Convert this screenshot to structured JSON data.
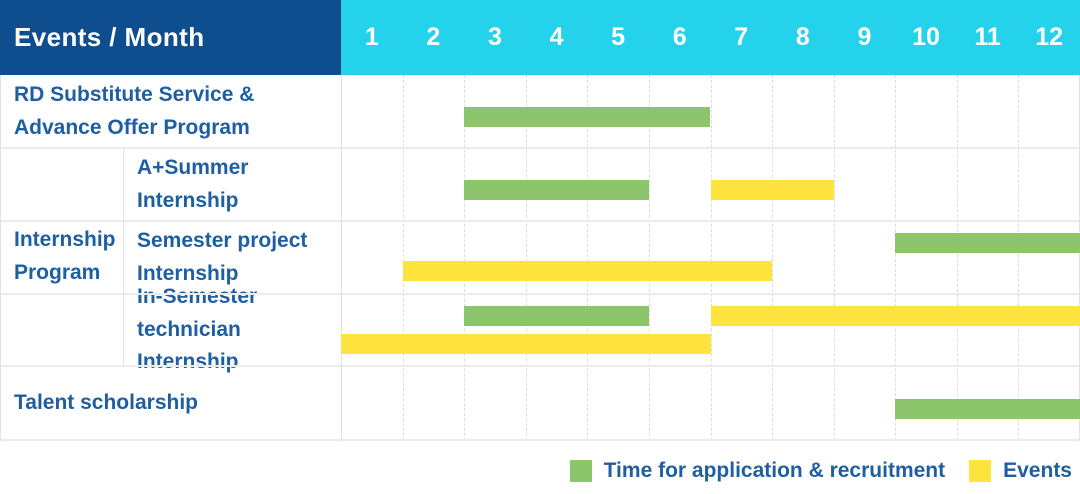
{
  "header": {
    "title": "Events / Month",
    "months": [
      "1",
      "2",
      "3",
      "4",
      "5",
      "6",
      "7",
      "8",
      "9",
      "10",
      "11",
      "12"
    ]
  },
  "labels": {
    "rd": "RD Substitute Service &\nAdvance Offer Program",
    "internship_group": "Internship\nProgram",
    "a_summer": "A+Summer\nInternship",
    "semester_project": "Semester project\nInternship",
    "in_semester": "In-Semester\ntechnician Internship",
    "talent": "Talent scholarship"
  },
  "legend": [
    {
      "label": "Time for application & recruitment",
      "kind": "application"
    },
    {
      "label": "Events",
      "kind": "event"
    }
  ],
  "colors": {
    "header_navy": "#0f4e8e",
    "header_cyan": "#24d2ec",
    "label_blue": "#1e5fa4",
    "application_green": "#8cc56b",
    "event_yellow": "#ffe33f"
  },
  "chart_data": {
    "type": "bar",
    "variant": "gantt-schedule",
    "title": "Events / Month",
    "x_axis": {
      "label": "Month",
      "categories": [
        1,
        2,
        3,
        4,
        5,
        6,
        7,
        8,
        9,
        10,
        11,
        12
      ]
    },
    "legend_position": "bottom-right",
    "grid": true,
    "rows": [
      {
        "group": "RD Substitute Service & Advance Offer Program",
        "label": "RD Substitute Service & Advance Offer Program",
        "bars": [
          {
            "kind": "application",
            "start": 3,
            "end": 6,
            "lane": "single"
          }
        ]
      },
      {
        "group": "Internship Program",
        "label": "A+Summer Internship",
        "bars": [
          {
            "kind": "application",
            "start": 3,
            "end": 5,
            "lane": "single"
          },
          {
            "kind": "event",
            "start": 7,
            "end": 8,
            "lane": "single"
          }
        ]
      },
      {
        "group": "Internship Program",
        "label": "Semester project Internship",
        "bars": [
          {
            "kind": "application",
            "start": 10,
            "end": 12,
            "lane": "upper"
          },
          {
            "kind": "event",
            "start": 2,
            "end": 7,
            "lane": "lower"
          }
        ]
      },
      {
        "group": "Internship Program",
        "label": "In-Semester technician Internship",
        "bars": [
          {
            "kind": "application",
            "start": 3,
            "end": 5,
            "lane": "upper"
          },
          {
            "kind": "event",
            "start": 7,
            "end": 12,
            "lane": "upper"
          },
          {
            "kind": "event",
            "start": 1,
            "end": 6,
            "lane": "lower"
          }
        ]
      },
      {
        "group": "Talent scholarship",
        "label": "Talent scholarship",
        "bars": [
          {
            "kind": "application",
            "start": 10,
            "end": 12,
            "lane": "single"
          }
        ]
      }
    ],
    "legend": [
      {
        "label": "Time for application & recruitment",
        "kind": "application",
        "color": "#8cc56b"
      },
      {
        "label": "Events",
        "kind": "event",
        "color": "#ffe33f"
      }
    ]
  }
}
